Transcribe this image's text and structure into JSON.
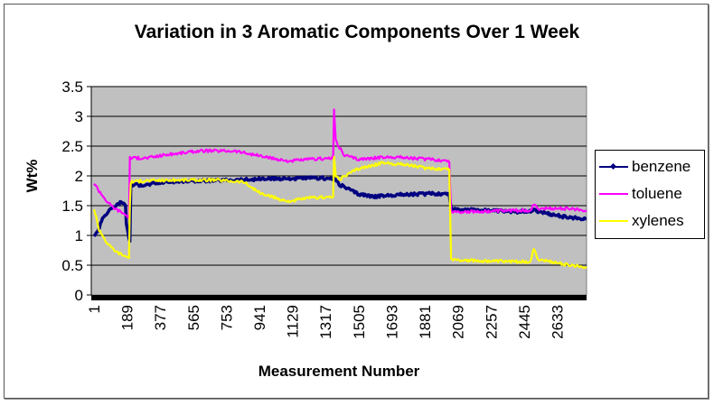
{
  "chart_data": {
    "type": "line",
    "title": "Variation in 3 Aromatic Components Over 1 Week",
    "xlabel": "Measurement Number",
    "ylabel": "Wt%",
    "ylim": [
      0,
      3.5
    ],
    "xlim": [
      1,
      2800
    ],
    "y_ticks": [
      "0",
      "0.5",
      "1",
      "1.5",
      "2",
      "2.5",
      "3",
      "3.5"
    ],
    "x_ticks": [
      "1",
      "189",
      "377",
      "565",
      "753",
      "941",
      "1129",
      "1317",
      "1505",
      "1693",
      "1881",
      "2069",
      "2257",
      "2445",
      "2633"
    ],
    "grid": true,
    "legend_position": "right",
    "background": "#c0c0c0",
    "series": [
      {
        "name": "benzene",
        "color": "#000080",
        "marker": "diamond",
        "points": [
          [
            1,
            1.0
          ],
          [
            20,
            1.05
          ],
          [
            50,
            1.3
          ],
          [
            100,
            1.45
          ],
          [
            150,
            1.55
          ],
          [
            170,
            1.55
          ],
          [
            180,
            1.5
          ],
          [
            185,
            1.2
          ],
          [
            200,
            0.95
          ],
          [
            205,
            0.9
          ],
          [
            210,
            1.85
          ],
          [
            300,
            1.85
          ],
          [
            400,
            1.9
          ],
          [
            600,
            1.92
          ],
          [
            800,
            1.93
          ],
          [
            1000,
            1.95
          ],
          [
            1200,
            1.96
          ],
          [
            1300,
            1.96
          ],
          [
            1370,
            1.95
          ],
          [
            1400,
            1.85
          ],
          [
            1500,
            1.7
          ],
          [
            1600,
            1.65
          ],
          [
            1700,
            1.68
          ],
          [
            1900,
            1.7
          ],
          [
            2020,
            1.7
          ],
          [
            2030,
            1.45
          ],
          [
            2200,
            1.42
          ],
          [
            2400,
            1.4
          ],
          [
            2500,
            1.42
          ],
          [
            2600,
            1.35
          ],
          [
            2700,
            1.3
          ],
          [
            2800,
            1.28
          ]
        ]
      },
      {
        "name": "toluene",
        "color": "#ff00ff",
        "marker": "dash",
        "points": [
          [
            1,
            1.88
          ],
          [
            30,
            1.75
          ],
          [
            80,
            1.55
          ],
          [
            120,
            1.45
          ],
          [
            170,
            1.37
          ],
          [
            190,
            1.32
          ],
          [
            200,
            1.32
          ],
          [
            205,
            2.3
          ],
          [
            300,
            2.3
          ],
          [
            400,
            2.35
          ],
          [
            600,
            2.42
          ],
          [
            800,
            2.42
          ],
          [
            1000,
            2.3
          ],
          [
            1100,
            2.25
          ],
          [
            1250,
            2.28
          ],
          [
            1360,
            2.3
          ],
          [
            1365,
            3.1
          ],
          [
            1375,
            2.6
          ],
          [
            1420,
            2.35
          ],
          [
            1500,
            2.28
          ],
          [
            1700,
            2.32
          ],
          [
            1900,
            2.28
          ],
          [
            2020,
            2.25
          ],
          [
            2030,
            1.4
          ],
          [
            2200,
            1.4
          ],
          [
            2400,
            1.42
          ],
          [
            2480,
            1.42
          ],
          [
            2500,
            1.52
          ],
          [
            2520,
            1.45
          ],
          [
            2700,
            1.45
          ],
          [
            2800,
            1.42
          ]
        ]
      },
      {
        "name": "xylenes",
        "color": "#ffff00",
        "marker": "triangle",
        "points": [
          [
            1,
            1.45
          ],
          [
            30,
            1.1
          ],
          [
            80,
            0.85
          ],
          [
            130,
            0.72
          ],
          [
            180,
            0.65
          ],
          [
            200,
            0.62
          ],
          [
            205,
            1.5
          ],
          [
            210,
            1.9
          ],
          [
            300,
            1.92
          ],
          [
            500,
            1.93
          ],
          [
            700,
            1.93
          ],
          [
            850,
            1.9
          ],
          [
            950,
            1.7
          ],
          [
            1100,
            1.57
          ],
          [
            1200,
            1.62
          ],
          [
            1360,
            1.65
          ],
          [
            1365,
            2.3
          ],
          [
            1375,
            2.0
          ],
          [
            1400,
            1.95
          ],
          [
            1500,
            2.12
          ],
          [
            1650,
            2.22
          ],
          [
            1800,
            2.18
          ],
          [
            1900,
            2.12
          ],
          [
            2020,
            2.12
          ],
          [
            2030,
            0.6
          ],
          [
            2200,
            0.57
          ],
          [
            2400,
            0.56
          ],
          [
            2480,
            0.56
          ],
          [
            2500,
            0.78
          ],
          [
            2520,
            0.6
          ],
          [
            2700,
            0.5
          ],
          [
            2800,
            0.47
          ]
        ]
      }
    ]
  },
  "legend": {
    "items": [
      {
        "label": "benzene",
        "color": "#000080"
      },
      {
        "label": "toluene",
        "color": "#ff00ff"
      },
      {
        "label": "xylenes",
        "color": "#ffff00"
      }
    ]
  }
}
